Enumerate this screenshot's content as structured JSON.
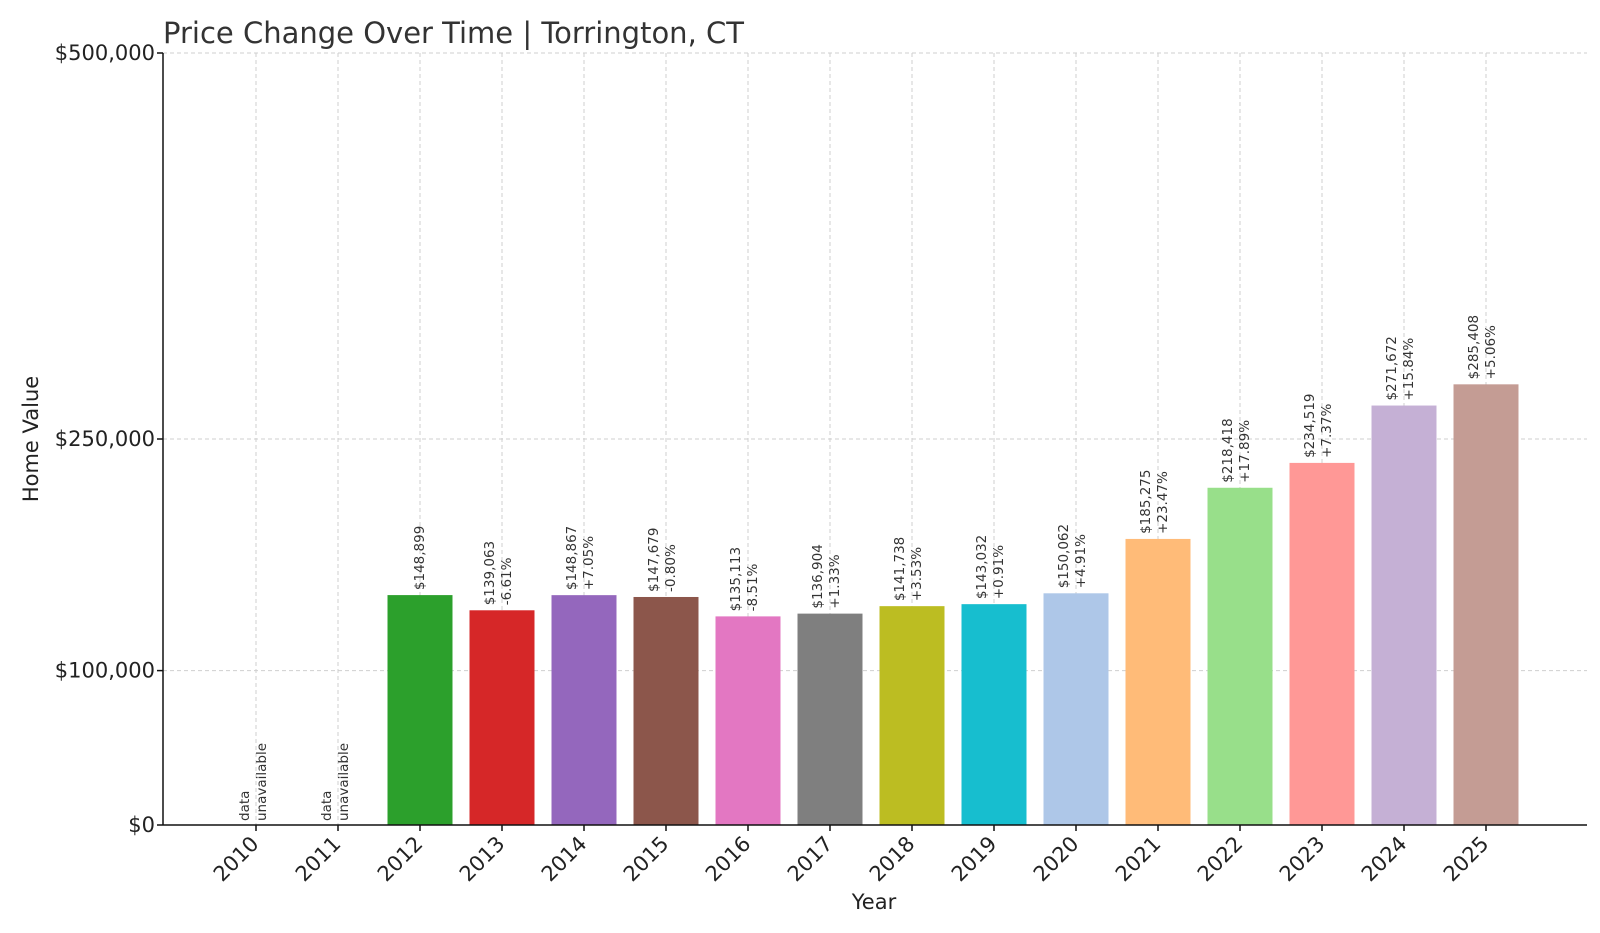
{
  "chart_data": {
    "type": "bar",
    "title": "Price Change Over Time | Torrington, CT",
    "xlabel": "Year",
    "ylabel": "Home Value",
    "ylim": [
      0,
      500000
    ],
    "ytick_values": [
      0,
      100000,
      250000,
      500000
    ],
    "ytick_labels": [
      "$0",
      "$100,000",
      "$250,000",
      "$500,000"
    ],
    "grid": true,
    "categories": [
      "2010",
      "2011",
      "2012",
      "2013",
      "2014",
      "2015",
      "2016",
      "2017",
      "2018",
      "2019",
      "2020",
      "2021",
      "2022",
      "2023",
      "2024",
      "2025"
    ],
    "values": [
      null,
      null,
      148899,
      139063,
      148867,
      147679,
      135113,
      136904,
      141738,
      143032,
      150062,
      185275,
      218418,
      234519,
      271672,
      285408
    ],
    "value_labels": [
      "",
      "",
      "$148,899",
      "$139,063",
      "$148,867",
      "$147,679",
      "$135,113",
      "$136,904",
      "$141,738",
      "$143,032",
      "$150,062",
      "$185,275",
      "$218,418",
      "$234,519",
      "$271,672",
      "$285,408"
    ],
    "change_labels": [
      "",
      "",
      "",
      "-6.61%",
      "+7.05%",
      "-0.80%",
      "-8.51%",
      "+1.33%",
      "+3.53%",
      "+0.91%",
      "+4.91%",
      "+23.47%",
      "+17.89%",
      "+7.37%",
      "+15.84%",
      "+5.06%"
    ],
    "unavailable_label": [
      "data",
      "unavailable"
    ],
    "colors": [
      "#1f77b4",
      "#ff7f0e",
      "#2ca02c",
      "#d62728",
      "#9467bd",
      "#8c564b",
      "#e377c2",
      "#7f7f7f",
      "#bcbd22",
      "#17becf",
      "#aec7e8",
      "#ffbb78",
      "#98df8a",
      "#ff9896",
      "#c5b0d5",
      "#c49c94"
    ]
  }
}
